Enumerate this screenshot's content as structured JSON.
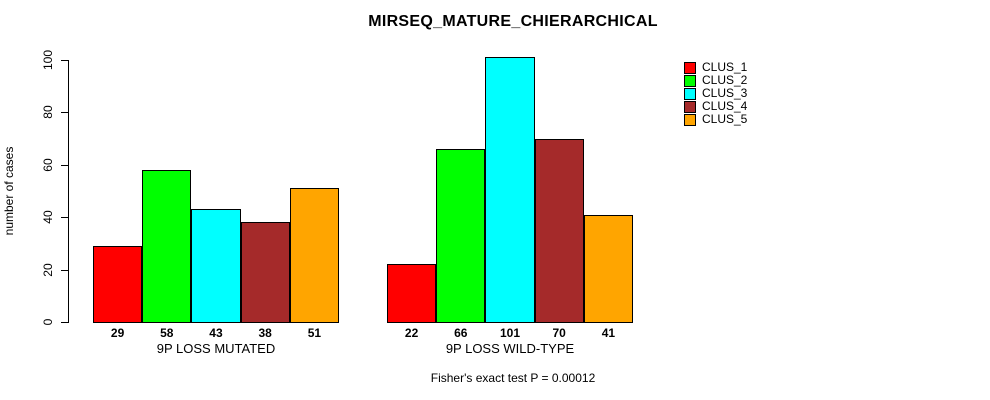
{
  "chart_data": {
    "type": "bar",
    "title": "MIRSEQ_MATURE_CHIERARCHICAL",
    "ylabel": "number of cases",
    "xlabel": "",
    "ylim": [
      0,
      100
    ],
    "yticks": [
      0,
      20,
      40,
      60,
      80,
      100
    ],
    "grid": false,
    "legend_position": "right",
    "categories": [
      "9P LOSS MUTATED",
      "9P LOSS WILD-TYPE"
    ],
    "series": [
      {
        "name": "CLUS_1",
        "color": "#FF0000",
        "values": [
          29,
          22
        ]
      },
      {
        "name": "CLUS_2",
        "color": "#00FF00",
        "values": [
          58,
          66
        ]
      },
      {
        "name": "CLUS_3",
        "color": "#00FFFF",
        "values": [
          43,
          101
        ]
      },
      {
        "name": "CLUS_4",
        "color": "#A52A2A",
        "values": [
          38,
          70
        ]
      },
      {
        "name": "CLUS_5",
        "color": "#FFA500",
        "values": [
          51,
          41
        ]
      }
    ],
    "bar_value_labels": [
      [
        29,
        58,
        43,
        38,
        51
      ],
      [
        22,
        66,
        101,
        70,
        41
      ]
    ],
    "annotation": "Fisher's exact test P = 0.00012"
  }
}
